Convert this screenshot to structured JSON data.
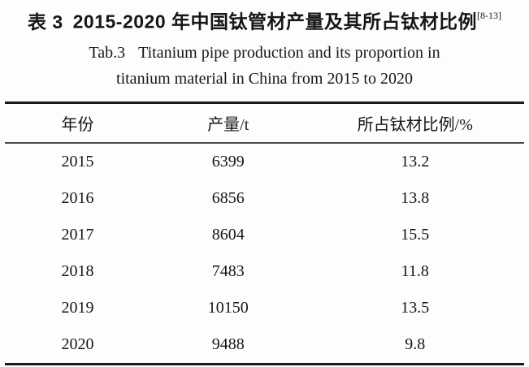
{
  "titles": {
    "cn_label": "表 3",
    "cn_title": "2015-2020 年中国钛管材产量及其所占钛材比例",
    "citation": "[8-13]",
    "en_label": "Tab.3",
    "en_line1": "Titanium pipe production and its proportion in",
    "en_line2": "titanium material in China from 2015 to 2020"
  },
  "table": {
    "columns": [
      "年份",
      "产量/t",
      "所占钛材比例/%"
    ],
    "rows": [
      [
        "2015",
        "6399",
        "13.2"
      ],
      [
        "2016",
        "6856",
        "13.8"
      ],
      [
        "2017",
        "8604",
        "15.5"
      ],
      [
        "2018",
        "7483",
        "11.8"
      ],
      [
        "2019",
        "10150",
        "13.5"
      ],
      [
        "2020",
        "9488",
        "9.8"
      ]
    ]
  }
}
